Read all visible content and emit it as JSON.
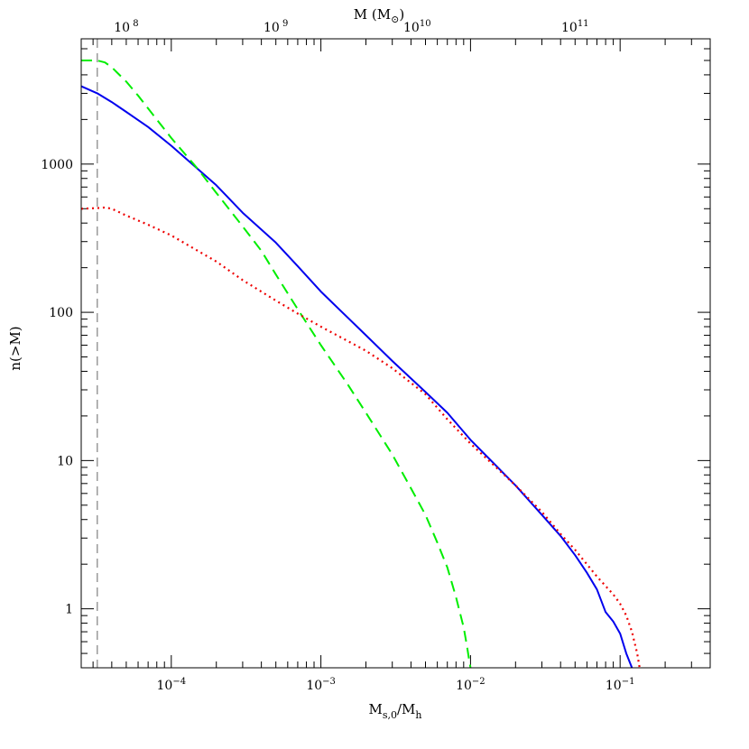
{
  "chart_data": {
    "type": "line",
    "xscale": "log",
    "yscale": "log",
    "xlim": [
      2.5e-05,
      0.4
    ],
    "ylim": [
      0.4,
      7000
    ],
    "xlabel": {
      "main": "M",
      "sub1": "s,0",
      "slash": "/",
      "main2": "M",
      "sub2": "h"
    },
    "ylabel": "n(>M)",
    "top_axis": {
      "label_main": "M",
      "label_open": " (M",
      "label_sun": "⊙",
      "label_close": ")",
      "ticks": [
        {
          "base": "10",
          "exp": " 8"
        },
        {
          "base": "10",
          "exp": " 9"
        },
        {
          "base": "10",
          "exp": "10"
        },
        {
          "base": "10",
          "exp": "11"
        }
      ]
    },
    "bottom_ticks": [
      {
        "value": 0.0001,
        "base": "10",
        "exp": "−4"
      },
      {
        "value": 0.001,
        "base": "10",
        "exp": "−3"
      },
      {
        "value": 0.01,
        "base": "10",
        "exp": "−2"
      },
      {
        "value": 0.1,
        "base": "10",
        "exp": "−1"
      }
    ],
    "left_ticks": [
      {
        "value": 1,
        "label": "1"
      },
      {
        "value": 10,
        "label": "10"
      },
      {
        "value": 100,
        "label": "100"
      },
      {
        "value": 1000,
        "label": "1000"
      }
    ],
    "vline": {
      "x": 3.2e-05,
      "color": "#999999"
    },
    "series": [
      {
        "color": "#0000ee",
        "style": "solid",
        "points": [
          [
            2.5e-05,
            3350
          ],
          [
            3.2e-05,
            3000
          ],
          [
            4e-05,
            2620
          ],
          [
            5e-05,
            2250
          ],
          [
            7e-05,
            1780
          ],
          [
            0.0001,
            1330
          ],
          [
            0.0002,
            720
          ],
          [
            0.0003,
            470
          ],
          [
            0.0005,
            295
          ],
          [
            0.0007,
            205
          ],
          [
            0.001,
            138
          ],
          [
            0.002,
            70
          ],
          [
            0.003,
            47
          ],
          [
            0.005,
            29
          ],
          [
            0.007,
            21
          ],
          [
            0.01,
            13.8
          ],
          [
            0.02,
            6.8
          ],
          [
            0.03,
            4.3
          ],
          [
            0.04,
            3.1
          ],
          [
            0.05,
            2.3
          ],
          [
            0.06,
            1.75
          ],
          [
            0.07,
            1.35
          ],
          [
            0.08,
            0.95
          ],
          [
            0.09,
            0.82
          ],
          [
            0.1,
            0.68
          ],
          [
            0.11,
            0.5
          ],
          [
            0.12,
            0.4
          ]
        ]
      },
      {
        "color": "#00ee00",
        "style": "dashed",
        "points": [
          [
            2.5e-05,
            5000
          ],
          [
            3.2e-05,
            5000
          ],
          [
            3.6e-05,
            4850
          ],
          [
            4e-05,
            4500
          ],
          [
            5e-05,
            3600
          ],
          [
            6e-05,
            2900
          ],
          [
            8e-05,
            2000
          ],
          [
            0.0001,
            1500
          ],
          [
            0.00015,
            930
          ],
          [
            0.0002,
            640
          ],
          [
            0.0003,
            380
          ],
          [
            0.0004,
            260
          ],
          [
            0.0005,
            180
          ],
          [
            0.0007,
            105
          ],
          [
            0.001,
            60
          ],
          [
            0.0015,
            33
          ],
          [
            0.002,
            21
          ],
          [
            0.003,
            11
          ],
          [
            0.004,
            6.5
          ],
          [
            0.005,
            4.3
          ],
          [
            0.006,
            2.8
          ],
          [
            0.007,
            1.9
          ],
          [
            0.008,
            1.2
          ],
          [
            0.009,
            0.75
          ],
          [
            0.0095,
            0.55
          ],
          [
            0.0098,
            0.45
          ],
          [
            0.01,
            0.4
          ]
        ]
      },
      {
        "color": "#ee0000",
        "style": "dotted",
        "points": [
          [
            2.5e-05,
            500
          ],
          [
            3.2e-05,
            505
          ],
          [
            3.6e-05,
            510
          ],
          [
            4e-05,
            500
          ],
          [
            5e-05,
            450
          ],
          [
            7e-05,
            390
          ],
          [
            0.0001,
            330
          ],
          [
            0.0002,
            220
          ],
          [
            0.0003,
            165
          ],
          [
            0.0005,
            120
          ],
          [
            0.0007,
            98
          ],
          [
            0.001,
            80
          ],
          [
            0.002,
            55
          ],
          [
            0.003,
            42
          ],
          [
            0.005,
            28
          ],
          [
            0.007,
            19
          ],
          [
            0.01,
            13
          ],
          [
            0.02,
            6.8
          ],
          [
            0.03,
            4.5
          ],
          [
            0.04,
            3.2
          ],
          [
            0.05,
            2.5
          ],
          [
            0.07,
            1.65
          ],
          [
            0.09,
            1.25
          ],
          [
            0.1,
            1.08
          ],
          [
            0.11,
            0.9
          ],
          [
            0.12,
            0.7
          ],
          [
            0.13,
            0.5
          ],
          [
            0.135,
            0.4
          ]
        ]
      }
    ]
  }
}
